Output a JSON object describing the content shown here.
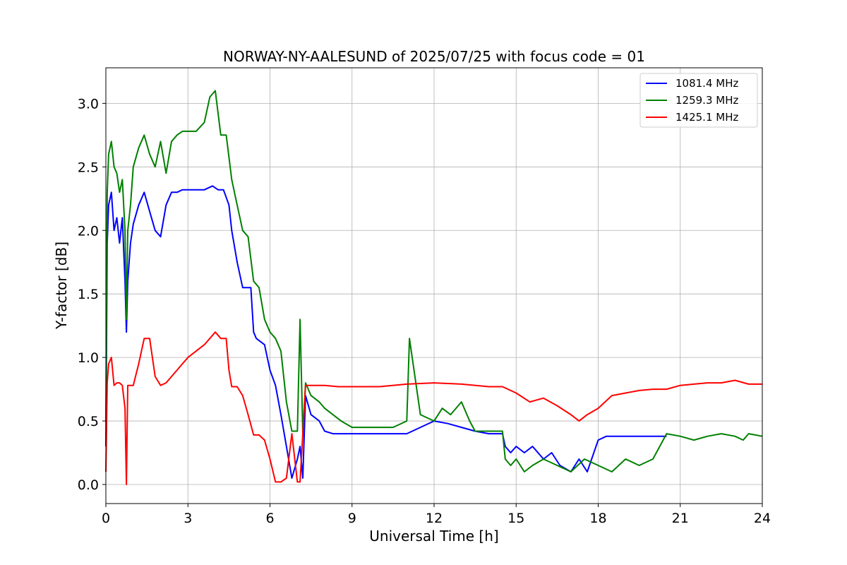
{
  "chart_data": {
    "type": "line",
    "title": "NORWAY-NY-AALESUND of 2025/07/25 with focus code = 01",
    "xlabel": "Universal Time [h]",
    "ylabel": "Y-factor [dB]",
    "xlim": [
      0,
      24
    ],
    "ylim": [
      -0.15,
      3.28
    ],
    "xticks": [
      0,
      3,
      6,
      9,
      12,
      15,
      18,
      21,
      24
    ],
    "xtick_labels": [
      "0",
      "3",
      "6",
      "9",
      "12",
      "15",
      "18",
      "21",
      "24"
    ],
    "yticks": [
      0.0,
      0.5,
      1.0,
      1.5,
      2.0,
      2.5,
      3.0
    ],
    "ytick_labels": [
      "0.0",
      "0.5",
      "1.0",
      "1.5",
      "2.0",
      "2.5",
      "3.0"
    ],
    "grid": true,
    "legend_position": "top-right",
    "series": [
      {
        "name": "1081.4 MHz",
        "color": "#0000ff",
        "x": [
          0,
          0.05,
          0.1,
          0.2,
          0.3,
          0.4,
          0.5,
          0.6,
          0.7,
          0.75,
          0.8,
          0.9,
          1.0,
          1.2,
          1.4,
          1.6,
          1.8,
          2.0,
          2.2,
          2.4,
          2.6,
          2.8,
          3.0,
          3.3,
          3.6,
          3.9,
          4.1,
          4.3,
          4.5,
          4.6,
          4.8,
          5.0,
          5.2,
          5.3,
          5.4,
          5.5,
          5.8,
          6.0,
          6.2,
          6.4,
          6.6,
          6.8,
          7.0,
          7.1,
          7.2,
          7.3,
          7.5,
          7.8,
          8.0,
          8.3,
          8.6,
          9.0,
          10.0,
          11.0,
          11.5,
          12.0,
          12.5,
          13.0,
          13.5,
          14.0,
          14.5,
          14.6,
          14.8,
          15.0,
          15.3,
          15.6,
          16.0,
          16.3,
          16.6,
          17.0,
          17.3,
          17.6,
          18.0,
          18.3,
          18.6,
          19.0,
          19.5,
          20.0,
          20.5
        ],
        "y": [
          0.3,
          1.9,
          2.2,
          2.3,
          2.0,
          2.1,
          1.9,
          2.1,
          1.6,
          1.2,
          1.6,
          1.9,
          2.05,
          2.2,
          2.3,
          2.15,
          2.0,
          1.95,
          2.2,
          2.3,
          2.3,
          2.32,
          2.32,
          2.32,
          2.32,
          2.35,
          2.32,
          2.32,
          2.2,
          2.0,
          1.75,
          1.55,
          1.55,
          1.55,
          1.2,
          1.15,
          1.1,
          0.9,
          0.78,
          0.55,
          0.3,
          0.05,
          0.2,
          0.3,
          0.05,
          0.7,
          0.55,
          0.5,
          0.42,
          0.4,
          0.4,
          0.4,
          0.4,
          0.4,
          0.45,
          0.5,
          0.48,
          0.45,
          0.42,
          0.4,
          0.4,
          0.3,
          0.25,
          0.3,
          0.25,
          0.3,
          0.2,
          0.25,
          0.15,
          0.1,
          0.2,
          0.1,
          0.35,
          0.38,
          0.38,
          0.38,
          0.38,
          0.38,
          0.38
        ]
      },
      {
        "name": "1259.3 MHz",
        "color": "#008000",
        "x": [
          0,
          0.05,
          0.1,
          0.2,
          0.3,
          0.4,
          0.5,
          0.6,
          0.7,
          0.75,
          0.8,
          0.9,
          1.0,
          1.2,
          1.4,
          1.6,
          1.8,
          2.0,
          2.2,
          2.4,
          2.6,
          2.8,
          3.0,
          3.3,
          3.6,
          3.8,
          4.0,
          4.2,
          4.4,
          4.6,
          4.8,
          5.0,
          5.2,
          5.4,
          5.6,
          5.8,
          6.0,
          6.2,
          6.4,
          6.6,
          6.8,
          7.0,
          7.1,
          7.2,
          7.3,
          7.5,
          7.8,
          8.0,
          8.3,
          8.6,
          9.0,
          9.5,
          10.0,
          10.5,
          11.0,
          11.1,
          11.5,
          12.0,
          12.3,
          12.6,
          13.0,
          13.3,
          13.5,
          14.0,
          14.5,
          14.6,
          14.8,
          15.0,
          15.3,
          15.6,
          16.0,
          16.5,
          17.0,
          17.5,
          18.0,
          18.5,
          19.0,
          19.5,
          20.0,
          20.5,
          21.0,
          21.5,
          22.0,
          22.5,
          23.0,
          23.3,
          23.5,
          24.0
        ],
        "y": [
          0.5,
          2.3,
          2.6,
          2.7,
          2.5,
          2.45,
          2.3,
          2.4,
          2.0,
          1.3,
          2.0,
          2.2,
          2.5,
          2.65,
          2.75,
          2.6,
          2.5,
          2.7,
          2.45,
          2.7,
          2.75,
          2.78,
          2.78,
          2.78,
          2.85,
          3.05,
          3.1,
          2.75,
          2.75,
          2.4,
          2.2,
          2.0,
          1.95,
          1.6,
          1.55,
          1.3,
          1.2,
          1.15,
          1.05,
          0.65,
          0.42,
          0.42,
          1.3,
          0.4,
          0.8,
          0.7,
          0.65,
          0.6,
          0.55,
          0.5,
          0.45,
          0.45,
          0.45,
          0.45,
          0.5,
          1.15,
          0.55,
          0.5,
          0.6,
          0.55,
          0.65,
          0.5,
          0.42,
          0.42,
          0.42,
          0.2,
          0.15,
          0.2,
          0.1,
          0.15,
          0.2,
          0.15,
          0.1,
          0.2,
          0.15,
          0.1,
          0.2,
          0.15,
          0.2,
          0.4,
          0.38,
          0.35,
          0.38,
          0.4,
          0.38,
          0.35,
          0.4,
          0.38
        ]
      },
      {
        "name": "1425.1 MHz",
        "color": "#ff0000",
        "x": [
          0,
          0.05,
          0.1,
          0.2,
          0.3,
          0.4,
          0.5,
          0.6,
          0.7,
          0.75,
          0.8,
          0.9,
          1.0,
          1.2,
          1.4,
          1.6,
          1.8,
          2.0,
          2.2,
          2.4,
          2.6,
          2.8,
          3.0,
          3.3,
          3.6,
          3.8,
          4.0,
          4.2,
          4.4,
          4.5,
          4.6,
          4.8,
          5.0,
          5.2,
          5.4,
          5.6,
          5.8,
          6.0,
          6.2,
          6.4,
          6.6,
          6.8,
          7.0,
          7.1,
          7.2,
          7.3,
          7.5,
          8.0,
          8.5,
          9.0,
          10.0,
          11.0,
          12.0,
          13.0,
          14.0,
          14.5,
          15.0,
          15.5,
          16.0,
          16.5,
          17.0,
          17.3,
          17.6,
          18.0,
          18.5,
          19.0,
          19.5,
          20.0,
          20.5,
          21.0,
          21.5,
          22.0,
          22.5,
          23.0,
          23.5,
          24.0
        ],
        "y": [
          0.1,
          0.8,
          0.95,
          1.0,
          0.78,
          0.8,
          0.8,
          0.78,
          0.6,
          0.0,
          0.78,
          0.78,
          0.78,
          0.95,
          1.15,
          1.15,
          0.85,
          0.78,
          0.8,
          0.85,
          0.9,
          0.95,
          1.0,
          1.05,
          1.1,
          1.15,
          1.2,
          1.15,
          1.15,
          0.9,
          0.77,
          0.77,
          0.7,
          0.55,
          0.39,
          0.39,
          0.35,
          0.2,
          0.02,
          0.02,
          0.05,
          0.4,
          0.02,
          0.02,
          0.4,
          0.78,
          0.78,
          0.78,
          0.77,
          0.77,
          0.77,
          0.79,
          0.8,
          0.79,
          0.77,
          0.77,
          0.72,
          0.65,
          0.68,
          0.62,
          0.55,
          0.5,
          0.55,
          0.6,
          0.7,
          0.72,
          0.74,
          0.75,
          0.75,
          0.78,
          0.79,
          0.8,
          0.8,
          0.82,
          0.79,
          0.79
        ]
      }
    ]
  }
}
